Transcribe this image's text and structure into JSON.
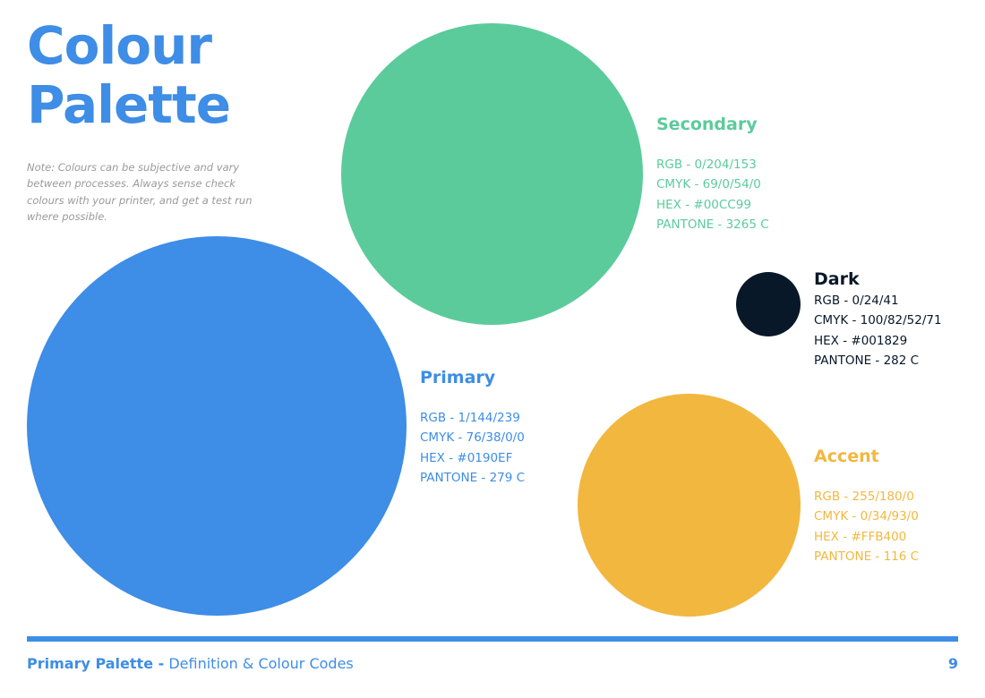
{
  "page": {
    "title_line1": "Colour",
    "title_line2": "Palette",
    "note": "Note: Colours can be subjective and vary between processes. Always sense check colours with your printer, and get a test run where possible.",
    "note_color": "#9a9a9a",
    "heading_color": "#3E8DE6"
  },
  "palette": {
    "secondary": {
      "name": "Secondary",
      "color": "#5BCB9B",
      "rgb": "RGB - 0/204/153",
      "cmyk": "CMYK - 69/0/54/0",
      "hex": "HEX - #00CC99",
      "pantone": "PANTONE - 3265 C"
    },
    "dark": {
      "name": "Dark",
      "color": "#081829",
      "rgb": "RGB - 0/24/41",
      "cmyk": "CMYK - 100/82/52/71",
      "hex": "HEX - #001829",
      "pantone": "PANTONE - 282 C"
    },
    "primary": {
      "name": "Primary",
      "color": "#3E8DE6",
      "rgb": "RGB - 1/144/239",
      "cmyk": "CMYK - 76/38/0/0",
      "hex": "HEX - #0190EF",
      "pantone": "PANTONE - 279 C"
    },
    "accent": {
      "name": "Accent",
      "color": "#F2B73F",
      "rgb": "RGB - 255/180/0",
      "cmyk": "CMYK - 0/34/93/0",
      "hex": "HEX - #FFB400",
      "pantone": "PANTONE - 116 C"
    }
  },
  "footer": {
    "section": "Primary Palette -",
    "subtitle": "Definition & Colour Codes",
    "page_number": "9",
    "rule_color": "#3E8DE6"
  }
}
